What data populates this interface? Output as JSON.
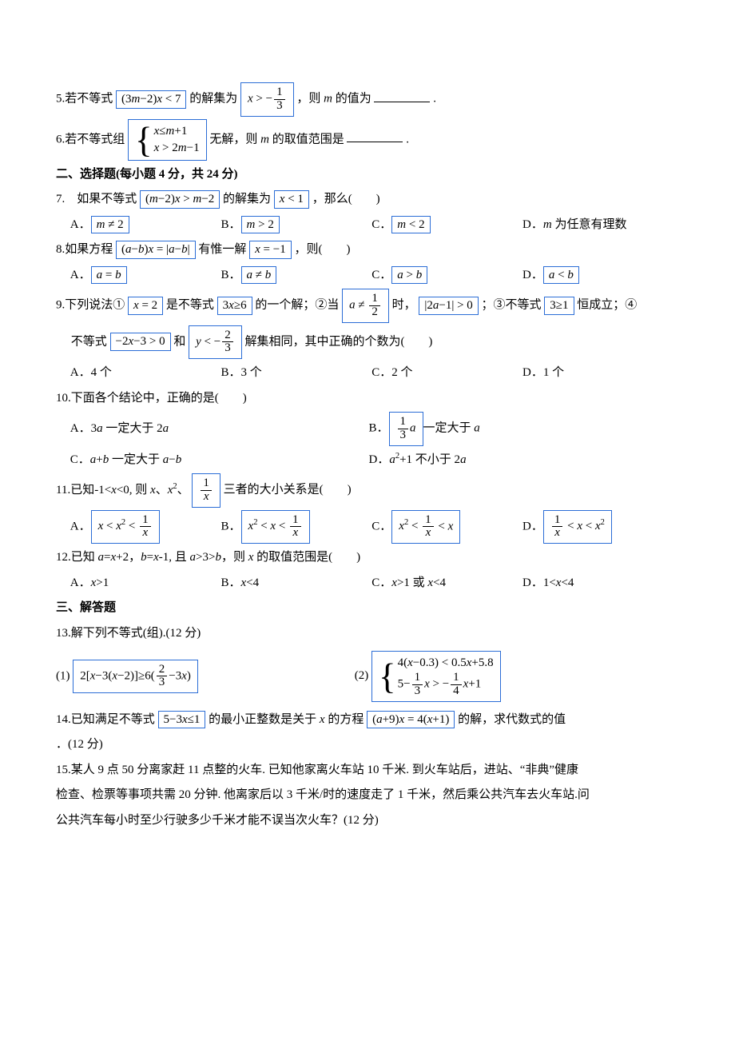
{
  "q5": {
    "pre": "5.若不等式",
    "exprA": "(3<i>m</i>−2)<i>x</i> < 7",
    "mid1": "的解集为",
    "exprB_pre": "<i>x</i> > −",
    "frac": {
      "num": "1",
      "den": "3"
    },
    "mid2": "，则 <i>m</i> 的值为",
    "post": "."
  },
  "q6": {
    "pre": "6.若不等式组",
    "rows": [
      "<i>x</i>≤<i>m</i>+1",
      "<i>x</i> > 2<i>m</i>−1"
    ],
    "mid": "无解，则 <i>m</i> 的取值范围是",
    "post": "."
  },
  "sec2": "二、选择题(每小题 4 分，共 24 分)",
  "q7": {
    "text1": "7.　如果不等式",
    "box1": "(<i>m</i>−2)<i>x</i> > <i>m</i>−2",
    "text2": "的解集为",
    "box2": "<i>x</i> < 1",
    "text3": "，那么(　　)",
    "A": "<i>m</i> ≠ 2",
    "B": "<i>m</i> > 2",
    "C": "<i>m</i> < 2",
    "D": "D．<i>m</i> 为任意有理数"
  },
  "q8": {
    "text1": "8.如果方程",
    "box1": "(<i>a</i>−<i>b</i>)<i>x</i> = |<i>a</i>−<i>b</i>|",
    "text2": "有惟一解",
    "box2": "<i>x</i> = −1",
    "text3": "，则(　　)",
    "A": "<i>a</i> = <i>b</i>",
    "B": "<i>a</i> ≠ <i>b</i>",
    "C": "<i>a</i> > <i>b</i>",
    "D": "<i>a</i> < <i>b</i>"
  },
  "q9": {
    "l1_t1": "9.下列说法①",
    "l1_b1": "<i>x</i> = 2",
    "l1_t2": "是不等式",
    "l1_b2": "3<i>x</i>≥6",
    "l1_t3": "的一个解；②当",
    "l1_b3_pre": "<i>a</i> ≠ ",
    "l1_frac": {
      "num": "1",
      "den": "2"
    },
    "l1_t4": "时，",
    "l1_b4": "|2<i>a</i>−1| > 0",
    "l1_t5": "；③不等式",
    "l1_b5": "3≥1",
    "l1_t6": "恒成立；④",
    "l2_t1": "不等式",
    "l2_b1": "−2<i>x</i>−3 > 0",
    "l2_t2": "和",
    "l2_b2_pre": "<i>y</i> < −",
    "l2_frac": {
      "num": "2",
      "den": "3"
    },
    "l2_t3": "解集相同，其中正确的个数为(　　)",
    "A": "A．4 个",
    "B": "B．3 个",
    "C": "C．2 个",
    "D": "D．1 个"
  },
  "q10": {
    "text": "10.下面各个结论中，正确的是(　　)",
    "A": "A．3<i>a</i> 一定大于 2<i>a</i>",
    "B_pre": "B．",
    "B_frac": {
      "num": "1",
      "den": "3"
    },
    "B_after": "<i>a</i>",
    "B_rest": "一定大于 <i>a</i>",
    "C": "C．<i>a</i>+<i>b</i> 一定大于 <i>a</i>−<i>b</i>",
    "D": "D．<i>a</i><sup>2</sup>+1 不小于 2<i>a</i>"
  },
  "q11": {
    "t1": "11.已知-1<<i>x</i><0, 则 <i>x</i>、<i>x</i><sup>2</sup>、",
    "frac": {
      "num": "1",
      "den": "<i>x</i>"
    },
    "t2": "三者的大小关系是(　　)",
    "A": "<i>x</i> < <i>x</i><sup>2</sup> < ",
    "B": "<i>x</i><sup>2</sup> < <i>x</i> < ",
    "C_pre": "<i>x</i><sup>2</sup> < ",
    "C_post": " < <i>x</i>",
    "D_pre": "",
    "D_post": " < <i>x</i> < <i>x</i><sup>2</sup>"
  },
  "q12": {
    "text": "12.已知 <i>a</i>=<i>x</i>+2，<i>b</i>=<i>x</i>-1, 且 <i>a</i>>3><i>b</i>，则 <i>x</i> 的取值范围是(　　)",
    "A": "A．<i>x</i>>1",
    "B": "B．<i>x</i><4",
    "C": "C．<i>x</i>>1 或 <i>x</i><4",
    "D": "D．1<<i>x</i><4"
  },
  "sec3": "三、解答题",
  "q13": {
    "text": "13.解下列不等式(组).(12 分)",
    "p1_pre": "(1)",
    "p1_lhs": "2[<i>x</i>−3(<i>x</i>−2)]≥6(",
    "p1_frac": {
      "num": "2",
      "den": "3"
    },
    "p1_rhs": "−3<i>x</i>)",
    "p2_pre": "(2)",
    "p2_r1": "4(<i>x</i>−0.3) < 0.5<i>x</i>+5.8",
    "p2_r2_a": "5−",
    "p2_r2_f1": {
      "num": "1",
      "den": "3"
    },
    "p2_r2_b": "<i>x</i> > −",
    "p2_r2_f2": {
      "num": "1",
      "den": "4"
    },
    "p2_r2_c": "<i>x</i>+1"
  },
  "q14": {
    "t1": "14.已知满足不等式",
    "b1": "5−3<i>x</i>≤1",
    "t2": "的最小正整数是关于 <i>x</i> 的方程",
    "b2": "(<i>a</i>+9)<i>x</i> = 4(<i>x</i>+1)",
    "t3": "的解，求代数式的值",
    "t4": "．(12 分)"
  },
  "q15": {
    "l1": "15.某人 9 点 50 分离家赶 11 点整的火车. 已知他家离火车站 10 千米. 到火车站后，进站、“非典”健康",
    "l2": "检查、检票等事项共需 20 分钟. 他离家后以 3 千米/时的速度走了 1 千米，然后乘公共汽车去火车站.问",
    "l3": "公共汽车每小时至少行驶多少千米才能不误当次火车？(12 分)"
  }
}
